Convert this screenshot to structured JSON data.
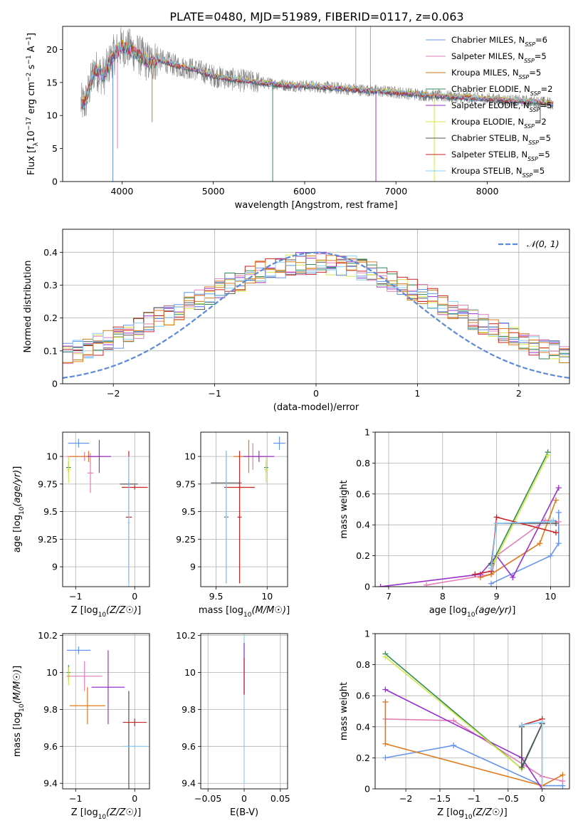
{
  "figure": {
    "title": "PLATE=0480, MJD=51989, FIBERID=0117, z=0.063"
  },
  "chart_data": [
    {
      "id": "spectrum",
      "type": "line",
      "xlabel": "wavelength [Angstrom, rest frame]",
      "ylabel": "Flux [f_λ 10^-17 erg cm^-2 s^-1 A^-1]",
      "xlim": [
        3350,
        8900
      ],
      "ylim": [
        0,
        23.5
      ],
      "xticks": [
        4000,
        5000,
        6000,
        7000,
        8000
      ],
      "yticks": [
        0,
        5,
        10,
        15,
        20
      ],
      "grid": false,
      "legend_position": "top-right",
      "data_shape": [
        [
          3600,
          12
        ],
        [
          3700,
          17
        ],
        [
          3800,
          16
        ],
        [
          3900,
          19
        ],
        [
          4000,
          20.5
        ],
        [
          4100,
          20
        ],
        [
          4200,
          19
        ],
        [
          4300,
          18
        ],
        [
          4400,
          18.5
        ],
        [
          4600,
          17.5
        ],
        [
          4800,
          17
        ],
        [
          5000,
          16
        ],
        [
          5200,
          15.5
        ],
        [
          5500,
          15
        ],
        [
          5800,
          14.6
        ],
        [
          6100,
          14.4
        ],
        [
          6400,
          14.1
        ],
        [
          6700,
          13.8
        ],
        [
          7000,
          13.5
        ],
        [
          7400,
          13
        ],
        [
          7800,
          12.7
        ],
        [
          8200,
          12.3
        ],
        [
          8600,
          12
        ],
        [
          8700,
          11.8
        ]
      ],
      "data_dips": [
        [
          3900,
          0
        ],
        [
          3950,
          5
        ],
        [
          4330,
          9
        ],
        [
          5650,
          0
        ],
        [
          6780,
          0
        ],
        [
          7420,
          0
        ],
        [
          8580,
          9
        ]
      ],
      "data_spikes": [
        [
          6560,
          23.5
        ],
        [
          6720,
          23.5
        ]
      ],
      "series": [
        {
          "name": "Chabrier MILES, N_SSP=6",
          "color": "#6495ed"
        },
        {
          "name": "Salpeter MILES, N_SSP=5",
          "color": "#e37fb7"
        },
        {
          "name": "Kroupa MILES, N_SSP=5",
          "color": "#c97d13"
        },
        {
          "name": "Chabrier ELODIE, N_SSP=2",
          "color": "#2e8b57"
        },
        {
          "name": "Salpeter ELODIE, N_SSP=5",
          "color": "#9932cc"
        },
        {
          "name": "Kroupa ELODIE, N_SSP=2",
          "color": "#d4e84a"
        },
        {
          "name": "Chabrier STELIB, N_SSP=5",
          "color": "#555555"
        },
        {
          "name": "Salpeter STELIB, N_SSP=5",
          "color": "#cc2222"
        },
        {
          "name": "Kroupa STELIB, N_SSP=5",
          "color": "#87cefa"
        }
      ]
    },
    {
      "id": "residuals",
      "type": "histogram",
      "xlabel": "(data-model)/error",
      "ylabel": "Normed distribution",
      "xlim": [
        -2.5,
        2.5
      ],
      "ylim": [
        0,
        0.47
      ],
      "xticks": [
        -2,
        -1,
        0,
        1,
        2
      ],
      "yticks": [
        0.0,
        0.1,
        0.2,
        0.3,
        0.4
      ],
      "grid": true,
      "legend_position": "top-right",
      "reference_curve": {
        "name": "N(0,1)",
        "color": "#5b8ad8"
      },
      "bin_width": 0.1,
      "series_colors": [
        "#c97d13",
        "#9932cc",
        "#555555",
        "#d4e84a",
        "#2e8b57",
        "#e37fb7",
        "#cc2222",
        "#6495ed",
        "#87cefa",
        "#e07a1f"
      ]
    },
    {
      "id": "age-vs-Z",
      "type": "errorbar",
      "xlabel": "Z [log10(Z/Z☉)]",
      "ylabel": "age [log10(age/yr)]",
      "xlim": [
        -1.22,
        0.25
      ],
      "ylim": [
        8.82,
        10.22
      ],
      "xticks": [
        -1,
        0
      ],
      "yticks": [
        9.0,
        9.25,
        9.5,
        9.75,
        10.0
      ],
      "grid": true,
      "points": [
        {
          "x": -0.95,
          "y": 10.12,
          "xerr": 0.18,
          "yerr": 0.04,
          "color": "#6495ed"
        },
        {
          "x": -1.12,
          "y": 9.9,
          "xerr": 0.04,
          "yerr": 0.05,
          "color": "#2e8b57"
        },
        {
          "x": -1.12,
          "y": 9.88,
          "xerr": 0.03,
          "yerr": 0.12,
          "color": "#d4e84a"
        },
        {
          "x": -0.85,
          "y": 10.0,
          "xerr": 0.3,
          "yerr": 0.04,
          "color": "#e37fb7"
        },
        {
          "x": -0.75,
          "y": 9.85,
          "xerr": 0.05,
          "yerr": 0.18,
          "color": "#e37fb7"
        },
        {
          "x": -0.78,
          "y": 10.0,
          "xerr": 0.32,
          "yerr": 0.05,
          "color": "#e07a1f"
        },
        {
          "x": -0.6,
          "y": 10.0,
          "xerr": 0.2,
          "yerr": 0.15,
          "color": "#9932cc"
        },
        {
          "x": -0.1,
          "y": 9.45,
          "xerr": 0.05,
          "yerr": 0.6,
          "color": "#cc2222"
        },
        {
          "x": -0.1,
          "y": 9.75,
          "xerr": 0.15,
          "yerr": 0.02,
          "color": "#555555"
        },
        {
          "x": 0.0,
          "y": 9.72,
          "xerr": 0.22,
          "yerr": 0.02,
          "color": "#cc2222"
        },
        {
          "x": -0.1,
          "y": 9.4,
          "xerr": 0.02,
          "yerr": 0.6,
          "color": "#87cefa"
        }
      ]
    },
    {
      "id": "age-vs-mass",
      "type": "errorbar",
      "xlabel": "mass [log10(M/M☉)]",
      "ylabel": "",
      "xlim": [
        9.35,
        10.2
      ],
      "ylim": [
        8.82,
        10.22
      ],
      "xticks": [
        9.5,
        10.0
      ],
      "yticks": [
        9.0,
        9.25,
        9.5,
        9.75,
        10.0
      ],
      "grid": true,
      "points": [
        {
          "x": 10.12,
          "y": 10.12,
          "xerr": 0.06,
          "yerr": 0.06,
          "color": "#6495ed"
        },
        {
          "x": 9.99,
          "y": 9.9,
          "xerr": 0.02,
          "yerr": 0.05,
          "color": "#2e8b57"
        },
        {
          "x": 9.99,
          "y": 9.88,
          "xerr": 0.02,
          "yerr": 0.12,
          "color": "#d4e84a"
        },
        {
          "x": 9.86,
          "y": 10.0,
          "xerr": 0.15,
          "yerr": 0.12,
          "color": "#e37fb7"
        },
        {
          "x": 9.82,
          "y": 10.0,
          "xerr": 0.15,
          "yerr": 0.15,
          "color": "#e07a1f"
        },
        {
          "x": 9.92,
          "y": 10.0,
          "xerr": 0.15,
          "yerr": 0.05,
          "color": "#9932cc"
        },
        {
          "x": 9.6,
          "y": 9.45,
          "xerr": 0.02,
          "yerr": 0.6,
          "color": "#555555"
        },
        {
          "x": 9.73,
          "y": 9.45,
          "xerr": 0.02,
          "yerr": 0.6,
          "color": "#cc2222"
        },
        {
          "x": 9.73,
          "y": 9.72,
          "xerr": 0.15,
          "yerr": 0.02,
          "color": "#cc2222"
        },
        {
          "x": 9.6,
          "y": 9.76,
          "xerr": 0.15,
          "yerr": 0.02,
          "color": "#555555"
        },
        {
          "x": 9.6,
          "y": 9.45,
          "xerr": 0.01,
          "yerr": 0.6,
          "color": "#87cefa"
        }
      ]
    },
    {
      "id": "massweight-vs-age",
      "type": "line",
      "xlabel": "age [log10(age/yr)]",
      "ylabel": "mass weight",
      "xlim": [
        6.75,
        10.35
      ],
      "ylim": [
        0,
        1.0
      ],
      "xticks": [
        7,
        8,
        9,
        10
      ],
      "yticks": [
        0.0,
        0.2,
        0.4,
        0.6,
        0.8,
        1.0
      ],
      "grid": true,
      "series": [
        {
          "color": "#6495ed",
          "points": [
            [
              8.9,
              0.02
            ],
            [
              10.0,
              0.2
            ],
            [
              10.15,
              0.28
            ],
            [
              10.15,
              0.48
            ]
          ]
        },
        {
          "color": "#e37fb7",
          "points": [
            [
              7.7,
              0.01
            ],
            [
              8.9,
              0.08
            ],
            [
              9.0,
              0.2
            ],
            [
              9.9,
              0.43
            ],
            [
              10.15,
              0.42
            ]
          ]
        },
        {
          "color": "#e07a1f",
          "points": [
            [
              8.7,
              0.06
            ],
            [
              8.9,
              0.08
            ],
            [
              9.8,
              0.28
            ],
            [
              10.1,
              0.56
            ]
          ]
        },
        {
          "color": "#9932cc",
          "points": [
            [
              6.85,
              0.0
            ],
            [
              8.7,
              0.08
            ],
            [
              9.0,
              0.2
            ],
            [
              9.3,
              0.06
            ],
            [
              10.15,
              0.64
            ]
          ]
        },
        {
          "color": "#2e8b57",
          "points": [
            [
              8.9,
              0.14
            ],
            [
              9.95,
              0.87
            ]
          ]
        },
        {
          "color": "#d4e84a",
          "points": [
            [
              8.9,
              0.12
            ],
            [
              9.95,
              0.85
            ]
          ]
        },
        {
          "color": "#555555",
          "points": [
            [
              8.9,
              0.15
            ],
            [
              9.0,
              0.41
            ],
            [
              10.1,
              0.41
            ]
          ]
        },
        {
          "color": "#cc2222",
          "points": [
            [
              8.6,
              0.08
            ],
            [
              8.9,
              0.1
            ],
            [
              9.0,
              0.45
            ],
            [
              10.1,
              0.35
            ]
          ]
        },
        {
          "color": "#87cefa",
          "points": [
            [
              8.9,
              0.12
            ],
            [
              9.0,
              0.41
            ],
            [
              10.0,
              0.42
            ],
            [
              10.05,
              0.43
            ]
          ]
        }
      ]
    },
    {
      "id": "mass-vs-Z",
      "type": "errorbar",
      "xlabel": "Z [log10(Z/Z☉)]",
      "ylabel": "mass [log10(M/M☉)]",
      "xlim": [
        -1.22,
        0.25
      ],
      "ylim": [
        9.37,
        10.21
      ],
      "xticks": [
        -1,
        0
      ],
      "yticks": [
        9.4,
        9.6,
        9.8,
        10.0,
        10.2
      ],
      "grid": true,
      "points": [
        {
          "x": -0.95,
          "y": 10.12,
          "xerr": 0.2,
          "yerr": 0.02,
          "color": "#6495ed"
        },
        {
          "x": -1.12,
          "y": 10.0,
          "xerr": 0.03,
          "yerr": 0.04,
          "color": "#2e8b57"
        },
        {
          "x": -1.12,
          "y": 9.98,
          "xerr": 0.03,
          "yerr": 0.05,
          "color": "#d4e84a"
        },
        {
          "x": -0.85,
          "y": 9.98,
          "xerr": 0.3,
          "yerr": 0.08,
          "color": "#e37fb7"
        },
        {
          "x": -0.8,
          "y": 9.82,
          "xerr": 0.3,
          "yerr": 0.1,
          "color": "#e07a1f"
        },
        {
          "x": -0.45,
          "y": 9.92,
          "xerr": 0.28,
          "yerr": 0.2,
          "color": "#9932cc"
        },
        {
          "x": -0.1,
          "y": 9.6,
          "xerr": 0.02,
          "yerr": 0.3,
          "color": "#555555"
        },
        {
          "x": 0.0,
          "y": 9.73,
          "xerr": 0.2,
          "yerr": 0.02,
          "color": "#cc2222"
        },
        {
          "x": 0.0,
          "y": 9.6,
          "xerr": 0.2,
          "yerr": 0.01,
          "color": "#87cefa"
        }
      ]
    },
    {
      "id": "mass-vs-ebv",
      "type": "errorbar",
      "xlabel": "E(B-V)",
      "ylabel": "",
      "xlim": [
        -0.06,
        0.06
      ],
      "ylim": [
        9.37,
        10.21
      ],
      "xticks": [
        -0.05,
        0.0,
        0.05
      ],
      "yticks": [
        9.4,
        9.6,
        9.8,
        10.0,
        10.2
      ],
      "grid": true,
      "points": [
        {
          "x": 0.0,
          "y": 9.8,
          "xerr": 0.0005,
          "yerr": 0.4,
          "color": "#87cefa"
        },
        {
          "x": 0.0,
          "y": 10.02,
          "xerr": 0.0005,
          "yerr": 0.14,
          "color": "#9932cc"
        },
        {
          "x": 0.0,
          "y": 9.98,
          "xerr": 0.0005,
          "yerr": 0.1,
          "color": "#cc2222"
        }
      ]
    },
    {
      "id": "massweight-vs-Z",
      "type": "line",
      "xlabel": "Z [log10(Z/Z☉)]",
      "ylabel": "mass weight",
      "xlim": [
        -2.45,
        0.4
      ],
      "ylim": [
        0,
        1.0
      ],
      "xticks": [
        -2.0,
        -1.5,
        -1.0,
        -0.5,
        0.0
      ],
      "yticks": [
        0.0,
        0.2,
        0.4,
        0.6,
        0.8,
        1.0
      ],
      "grid": true,
      "series": [
        {
          "color": "#6495ed",
          "points": [
            [
              -2.3,
              0.2
            ],
            [
              -1.3,
              0.28
            ],
            [
              0.0,
              0.02
            ],
            [
              0.3,
              0.02
            ]
          ]
        },
        {
          "color": "#e37fb7",
          "points": [
            [
              -2.3,
              0.45
            ],
            [
              -1.3,
              0.44
            ],
            [
              0.0,
              0.08
            ],
            [
              0.3,
              0.05
            ]
          ]
        },
        {
          "color": "#e07a1f",
          "points": [
            [
              -2.3,
              0.56
            ],
            [
              -2.3,
              0.29
            ],
            [
              0.0,
              0.02
            ],
            [
              0.3,
              0.09
            ]
          ]
        },
        {
          "color": "#9932cc",
          "points": [
            [
              -2.3,
              0.64
            ],
            [
              -0.3,
              0.2
            ],
            [
              0.0,
              0.0
            ]
          ]
        },
        {
          "color": "#2e8b57",
          "points": [
            [
              -2.3,
              0.87
            ],
            [
              -0.3,
              0.13
            ],
            [
              0.0,
              0.42
            ]
          ]
        },
        {
          "color": "#d4e84a",
          "points": [
            [
              -2.3,
              0.85
            ],
            [
              -0.3,
              0.13
            ]
          ]
        },
        {
          "color": "#555555",
          "points": [
            [
              -0.3,
              0.4
            ],
            [
              -0.3,
              0.14
            ],
            [
              0.0,
              0.42
            ],
            [
              0.0,
              0.0
            ]
          ]
        },
        {
          "color": "#cc2222",
          "points": [
            [
              -0.3,
              0.41
            ],
            [
              0.0,
              0.45
            ],
            [
              0.0,
              0.0
            ]
          ]
        },
        {
          "color": "#87cefa",
          "points": [
            [
              -0.3,
              0.41
            ],
            [
              0.0,
              0.43
            ],
            [
              0.0,
              0.0
            ]
          ]
        }
      ]
    }
  ]
}
